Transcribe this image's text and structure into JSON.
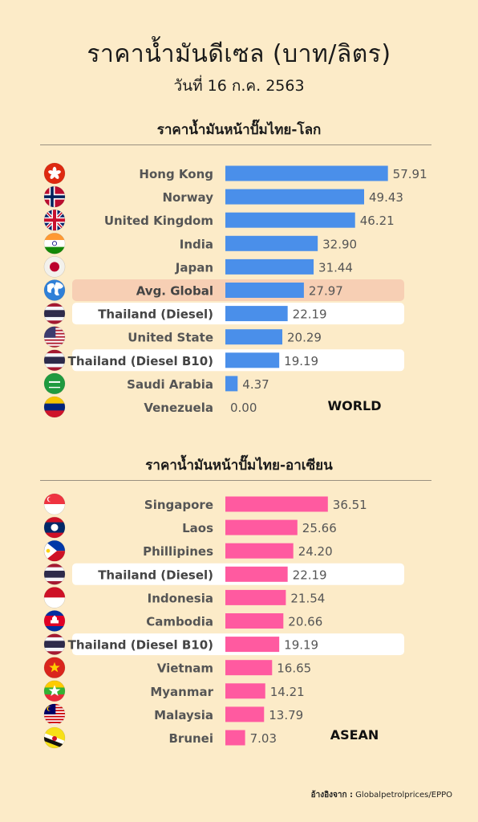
{
  "title": "ราคาน้ำมันดีเซล (บาท/ลิตร)",
  "subtitle": "วันที่ 16 ก.ค. 2563",
  "source": {
    "label": "อ้างอิงจาก :",
    "text": "Globalpetrolprices/EPPO"
  },
  "colors": {
    "background": "#fcebc8",
    "world_bar": "#4a8fea",
    "asean_bar": "#ff5aa0",
    "global_highlight": "#f7cfb4",
    "thai_highlight": "#ffffff"
  },
  "chart_data": [
    {
      "type": "bar",
      "orientation": "horizontal",
      "title": "ราคาน้ำมันหน้าปั๊มไทย-โลก",
      "region_label": "WORLD",
      "bar_color": "#4a8fea",
      "xlim": [
        0,
        60
      ],
      "categories": [
        "Hong Kong",
        "Norway",
        "United Kingdom",
        "India",
        "Japan",
        "Avg. Global",
        "Thailand (Diesel)",
        "United State",
        "Thailand (Diesel B10)",
        "Saudi Arabia",
        "Venezuela"
      ],
      "values": [
        57.91,
        49.43,
        46.21,
        32.9,
        31.44,
        27.97,
        22.19,
        20.29,
        19.19,
        4.37,
        0.0
      ],
      "value_labels": [
        "57.91",
        "49.43",
        "46.21",
        "32.90",
        "31.44",
        "27.97",
        "22.19",
        "20.29",
        "19.19",
        "4.37",
        "0.00"
      ],
      "flags": [
        "hong-kong",
        "norway",
        "united-kingdom",
        "india",
        "japan",
        "globe",
        "thailand",
        "united-states",
        "thailand",
        "saudi-arabia",
        "venezuela"
      ],
      "highlight": [
        "none",
        "none",
        "none",
        "none",
        "none",
        "global",
        "thai",
        "none",
        "thai",
        "none",
        "none"
      ]
    },
    {
      "type": "bar",
      "orientation": "horizontal",
      "title": "ราคาน้ำมันหน้าปั๊มไทย-อาเซียน",
      "region_label": "ASEAN",
      "bar_color": "#ff5aa0",
      "xlim": [
        0,
        60
      ],
      "categories": [
        "Singapore",
        "Laos",
        "Phillipines",
        "Thailand (Diesel)",
        "Indonesia",
        "Cambodia",
        "Thailand (Diesel B10)",
        "Vietnam",
        "Myanmar",
        "Malaysia",
        "Brunei"
      ],
      "values": [
        36.51,
        25.66,
        24.2,
        22.19,
        21.54,
        20.66,
        19.19,
        16.65,
        14.21,
        13.79,
        7.03
      ],
      "value_labels": [
        "36.51",
        "25.66",
        "24.20",
        "22.19",
        "21.54",
        "20.66",
        "19.19",
        "16.65",
        "14.21",
        "13.79",
        "7.03"
      ],
      "flags": [
        "singapore",
        "laos",
        "philippines",
        "thailand",
        "indonesia",
        "cambodia",
        "thailand",
        "vietnam",
        "myanmar",
        "malaysia",
        "brunei"
      ],
      "highlight": [
        "none",
        "none",
        "none",
        "thai",
        "none",
        "none",
        "thai",
        "none",
        "none",
        "none",
        "none"
      ]
    }
  ]
}
